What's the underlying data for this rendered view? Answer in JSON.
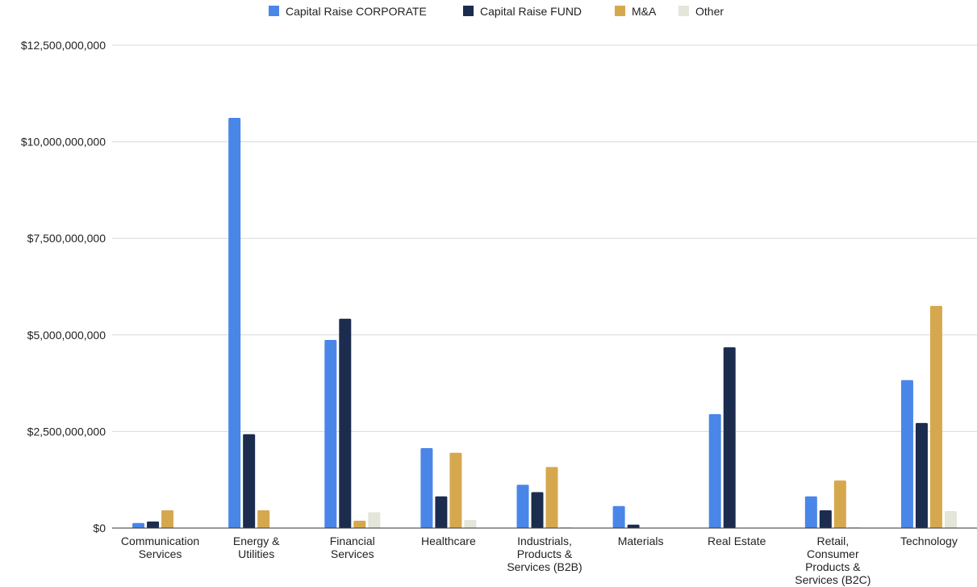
{
  "chart_data": {
    "type": "bar",
    "title": "",
    "xlabel": "",
    "ylabel": "",
    "ylim": [
      0,
      12500000000
    ],
    "yticks": [
      {
        "value": 0,
        "label": "$0"
      },
      {
        "value": 2500000000,
        "label": "$2,500,000,000"
      },
      {
        "value": 5000000000,
        "label": "$5,000,000,000"
      },
      {
        "value": 7500000000,
        "label": "$7,500,000,000"
      },
      {
        "value": 10000000000,
        "label": "$10,000,000,000"
      },
      {
        "value": 12500000000,
        "label": "$12,500,000,000"
      }
    ],
    "grid": true,
    "legend_position": "top",
    "categories": [
      [
        "Communication",
        "Services"
      ],
      [
        "Energy &",
        "Utilities"
      ],
      [
        "Financial",
        "Services"
      ],
      [
        "Healthcare"
      ],
      [
        "Industrials,",
        "Products &",
        "Services (B2B)"
      ],
      [
        "Materials"
      ],
      [
        "Real Estate"
      ],
      [
        "Retail,",
        "Consumer",
        "Products &",
        "Services (B2C)"
      ],
      [
        "Technology"
      ]
    ],
    "series": [
      {
        "name": "Capital Raise CORPORATE",
        "color": "#4a86e8",
        "values": [
          130000000,
          10620000000,
          4870000000,
          2070000000,
          1120000000,
          570000000,
          2950000000,
          820000000,
          3830000000
        ]
      },
      {
        "name": "Capital Raise FUND",
        "color": "#1c2c4e",
        "values": [
          170000000,
          2430000000,
          5420000000,
          820000000,
          930000000,
          90000000,
          4680000000,
          460000000,
          2720000000
        ]
      },
      {
        "name": "M&A",
        "color": "#d6a84e",
        "values": [
          460000000,
          460000000,
          190000000,
          1950000000,
          1580000000,
          0,
          0,
          1230000000,
          5750000000
        ]
      },
      {
        "name": "Other",
        "color": "#e3e6d8",
        "values": [
          0,
          0,
          410000000,
          210000000,
          30000000,
          0,
          0,
          30000000,
          440000000
        ]
      }
    ]
  }
}
